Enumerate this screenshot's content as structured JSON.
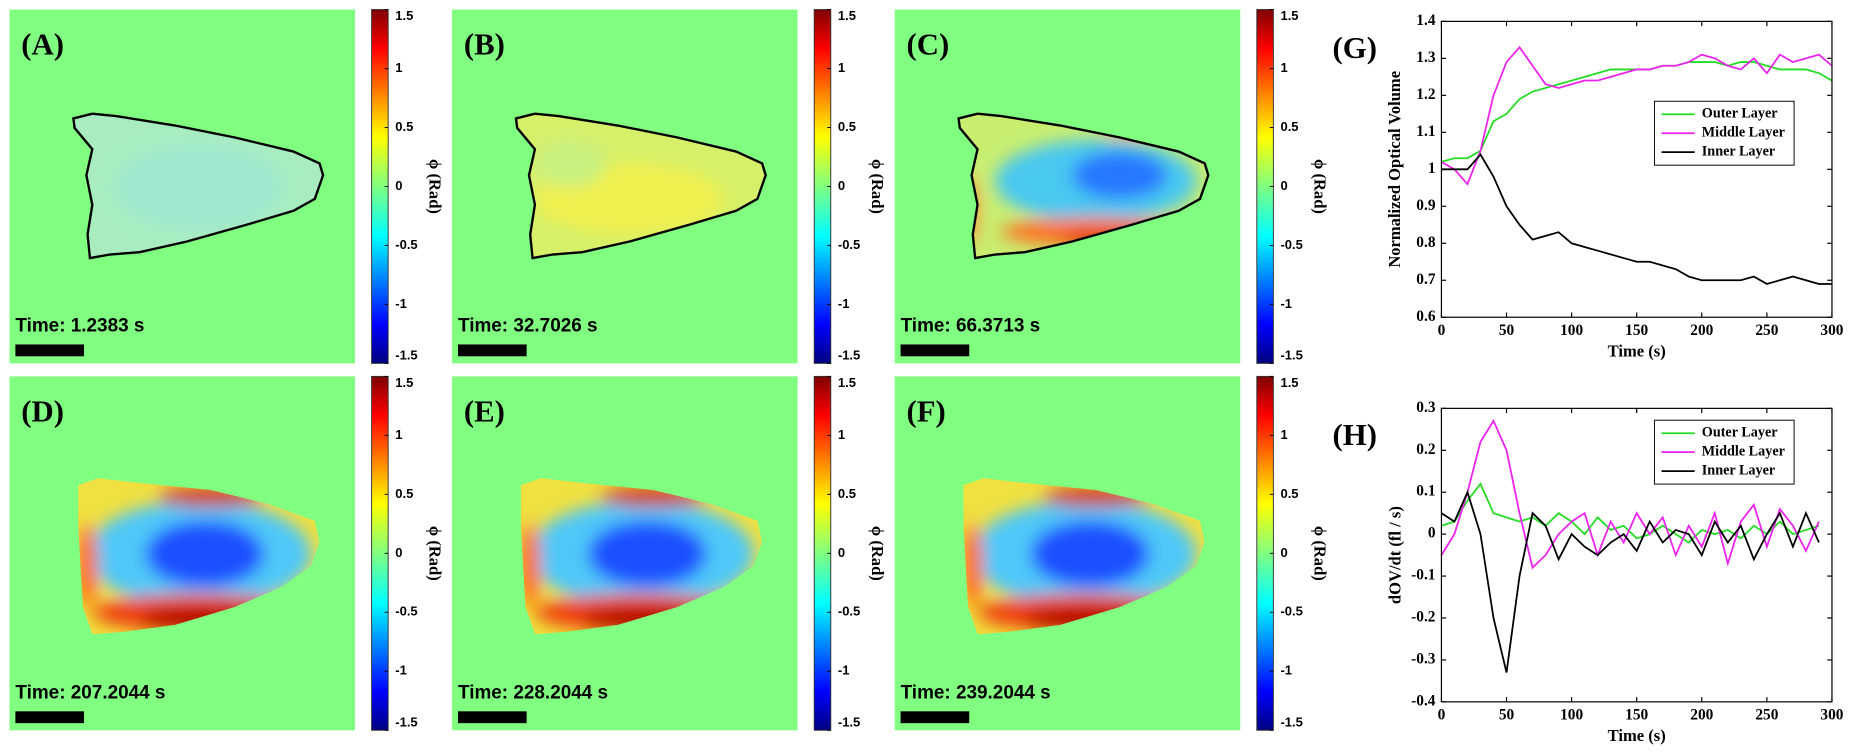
{
  "chart_data": [
    {
      "type": "phase-map",
      "label": "(A)",
      "time_label": "Time: 1.2383 s",
      "outline": true,
      "colormap": "jet",
      "colorbar_label": "ϕ (Rad)",
      "clim": [
        -1.5,
        1.5
      ],
      "cticks": [
        1.5,
        1,
        0.5,
        0,
        -0.5,
        -1,
        -1.5
      ]
    },
    {
      "type": "phase-map",
      "label": "(B)",
      "time_label": "Time: 32.7026 s",
      "outline": true,
      "colormap": "jet",
      "colorbar_label": "ϕ (Rad)",
      "clim": [
        -1.5,
        1.5
      ],
      "cticks": [
        1.5,
        1,
        0.5,
        0,
        -0.5,
        -1,
        -1.5
      ]
    },
    {
      "type": "phase-map",
      "label": "(C)",
      "time_label": "Time: 66.3713 s",
      "outline": true,
      "colormap": "jet",
      "colorbar_label": "ϕ (Rad)",
      "clim": [
        -1.5,
        1.5
      ],
      "cticks": [
        1.5,
        1,
        0.5,
        0,
        -0.5,
        -1,
        -1.5
      ]
    },
    {
      "type": "phase-map",
      "label": "(D)",
      "time_label": "Time: 207.2044 s",
      "outline": false,
      "colormap": "jet",
      "colorbar_label": "ϕ (Rad)",
      "clim": [
        -1.5,
        1.5
      ],
      "cticks": [
        1.5,
        1,
        0.5,
        0,
        -0.5,
        -1,
        -1.5
      ]
    },
    {
      "type": "phase-map",
      "label": "(E)",
      "time_label": "Time: 228.2044 s",
      "outline": false,
      "colormap": "jet",
      "colorbar_label": "ϕ (Rad)",
      "clim": [
        -1.5,
        1.5
      ],
      "cticks": [
        1.5,
        1,
        0.5,
        0,
        -0.5,
        -1,
        -1.5
      ]
    },
    {
      "type": "phase-map",
      "label": "(F)",
      "time_label": "Time: 239.2044 s",
      "outline": false,
      "colormap": "jet",
      "colorbar_label": "ϕ (Rad)",
      "clim": [
        -1.5,
        1.5
      ],
      "cticks": [
        1.5,
        1,
        0.5,
        0,
        -0.5,
        -1,
        -1.5
      ]
    },
    {
      "type": "line",
      "label": "(G)",
      "xlabel": "Time (s)",
      "ylabel": "Normalized Optical Volume",
      "xlim": [
        0,
        300
      ],
      "ylim": [
        0.6,
        1.4
      ],
      "xticks": [
        0,
        50,
        100,
        150,
        200,
        250,
        300
      ],
      "yticks": [
        0.6,
        0.7,
        0.8,
        0.9,
        1,
        1.1,
        1.2,
        1.3,
        1.4
      ],
      "legend": "right",
      "x": [
        0,
        10,
        20,
        30,
        40,
        50,
        60,
        70,
        80,
        90,
        100,
        110,
        120,
        130,
        140,
        150,
        160,
        170,
        180,
        190,
        200,
        210,
        220,
        230,
        240,
        250,
        260,
        270,
        280,
        290,
        300
      ],
      "series": [
        {
          "name": "Outer Layer",
          "color": "#22dd22",
          "values": [
            1.02,
            1.03,
            1.03,
            1.05,
            1.13,
            1.15,
            1.19,
            1.21,
            1.22,
            1.23,
            1.24,
            1.25,
            1.26,
            1.27,
            1.27,
            1.27,
            1.27,
            1.28,
            1.28,
            1.29,
            1.29,
            1.29,
            1.28,
            1.29,
            1.29,
            1.28,
            1.27,
            1.27,
            1.27,
            1.26,
            1.24
          ]
        },
        {
          "name": "Middle Layer",
          "color": "#ee22ee",
          "values": [
            1.02,
            1.0,
            0.96,
            1.05,
            1.2,
            1.29,
            1.33,
            1.28,
            1.23,
            1.22,
            1.23,
            1.24,
            1.24,
            1.25,
            1.26,
            1.27,
            1.27,
            1.28,
            1.28,
            1.29,
            1.31,
            1.3,
            1.28,
            1.27,
            1.3,
            1.26,
            1.31,
            1.29,
            1.3,
            1.31,
            1.28
          ]
        },
        {
          "name": "Inner Layer",
          "color": "#000000",
          "values": [
            1.0,
            1.0,
            1.0,
            1.04,
            0.98,
            0.9,
            0.85,
            0.81,
            0.82,
            0.83,
            0.8,
            0.79,
            0.78,
            0.77,
            0.76,
            0.75,
            0.75,
            0.74,
            0.73,
            0.71,
            0.7,
            0.7,
            0.7,
            0.7,
            0.71,
            0.69,
            0.7,
            0.71,
            0.7,
            0.69,
            0.69
          ]
        }
      ]
    },
    {
      "type": "line",
      "label": "(H)",
      "xlabel": "Time (s)",
      "ylabel": "dOV/dt (fl / s)",
      "xlim": [
        0,
        300
      ],
      "ylim": [
        -0.4,
        0.3
      ],
      "xticks": [
        0,
        50,
        100,
        150,
        200,
        250,
        300
      ],
      "yticks": [
        -0.4,
        -0.3,
        -0.2,
        -0.1,
        0,
        0.1,
        0.2,
        0.3
      ],
      "legend": "upper right",
      "x": [
        0,
        10,
        20,
        30,
        40,
        50,
        60,
        70,
        80,
        90,
        100,
        110,
        120,
        130,
        140,
        150,
        160,
        170,
        180,
        190,
        200,
        210,
        220,
        230,
        240,
        250,
        260,
        270,
        280,
        290
      ],
      "series": [
        {
          "name": "Outer Layer",
          "color": "#22dd22",
          "values": [
            0.02,
            0.03,
            0.08,
            0.12,
            0.05,
            0.04,
            0.03,
            0.04,
            0.02,
            0.05,
            0.03,
            0.0,
            0.04,
            0.01,
            0.02,
            -0.01,
            0.0,
            0.02,
            0.0,
            -0.02,
            0.01,
            0.0,
            0.01,
            -0.01,
            0.02,
            0.0,
            0.03,
            0.0,
            0.01,
            0.02
          ]
        },
        {
          "name": "Middle Layer",
          "color": "#ee22ee",
          "values": [
            -0.05,
            0.0,
            0.1,
            0.22,
            0.27,
            0.2,
            0.05,
            -0.08,
            -0.05,
            0.0,
            0.03,
            0.05,
            -0.05,
            0.03,
            -0.02,
            0.05,
            0.0,
            0.04,
            -0.05,
            0.02,
            -0.03,
            0.05,
            -0.07,
            0.03,
            0.07,
            -0.03,
            0.06,
            0.02,
            -0.04,
            0.03
          ]
        },
        {
          "name": "Inner Layer",
          "color": "#000000",
          "values": [
            0.05,
            0.03,
            0.1,
            0.0,
            -0.2,
            -0.33,
            -0.1,
            0.05,
            0.02,
            -0.06,
            0.0,
            -0.03,
            -0.05,
            -0.02,
            0.0,
            -0.04,
            0.03,
            -0.02,
            0.01,
            0.0,
            -0.05,
            0.03,
            -0.02,
            0.02,
            -0.06,
            0.0,
            0.05,
            -0.03,
            0.05,
            -0.02
          ]
        }
      ]
    }
  ]
}
